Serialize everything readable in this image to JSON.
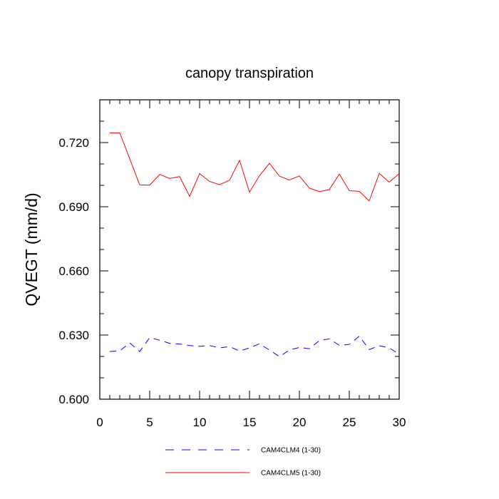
{
  "chart_data": {
    "type": "line",
    "title": "canopy transpiration",
    "xlabel": "",
    "ylabel": "QVEGT  (mm/d)",
    "xlim": [
      0,
      30
    ],
    "ylim": [
      0.6,
      0.74
    ],
    "x_ticks": [
      0,
      5,
      10,
      15,
      20,
      25,
      30
    ],
    "x_tick_labels": [
      "0",
      "5",
      "10",
      "15",
      "20",
      "25",
      "30"
    ],
    "y_ticks": [
      0.6,
      0.63,
      0.66,
      0.69,
      0.72
    ],
    "y_tick_labels": [
      "0.600",
      "0.630",
      "0.660",
      "0.690",
      "0.720"
    ],
    "grid": false,
    "legend_position": "bottom",
    "x": [
      1,
      2,
      3,
      4,
      5,
      6,
      7,
      8,
      9,
      10,
      11,
      12,
      13,
      14,
      15,
      16,
      17,
      18,
      19,
      20,
      21,
      22,
      23,
      24,
      25,
      26,
      27,
      28,
      29,
      30
    ],
    "series": [
      {
        "name": "CAM4CLM4 (1-30)",
        "color": "#0000ff",
        "dash": "dashed",
        "values": [
          0.6223,
          0.6226,
          0.6263,
          0.6223,
          0.6288,
          0.6276,
          0.6261,
          0.6258,
          0.6251,
          0.6247,
          0.6251,
          0.624,
          0.6246,
          0.6225,
          0.624,
          0.6259,
          0.623,
          0.6199,
          0.623,
          0.6242,
          0.6236,
          0.6274,
          0.6282,
          0.6252,
          0.6256,
          0.6295,
          0.6232,
          0.625,
          0.624,
          0.621
        ]
      },
      {
        "name": "CAM4CLM5 (1-30)",
        "color": "#ff0000",
        "dash": "solid",
        "values": [
          0.7245,
          0.7246,
          0.7124,
          0.7002,
          0.7001,
          0.7051,
          0.7032,
          0.7041,
          0.6949,
          0.7055,
          0.7018,
          0.7003,
          0.7024,
          0.7117,
          0.6968,
          0.7045,
          0.7103,
          0.7043,
          0.7025,
          0.7044,
          0.6987,
          0.6971,
          0.698,
          0.7053,
          0.6975,
          0.6972,
          0.6927,
          0.7056,
          0.7015,
          0.7055
        ]
      }
    ]
  }
}
